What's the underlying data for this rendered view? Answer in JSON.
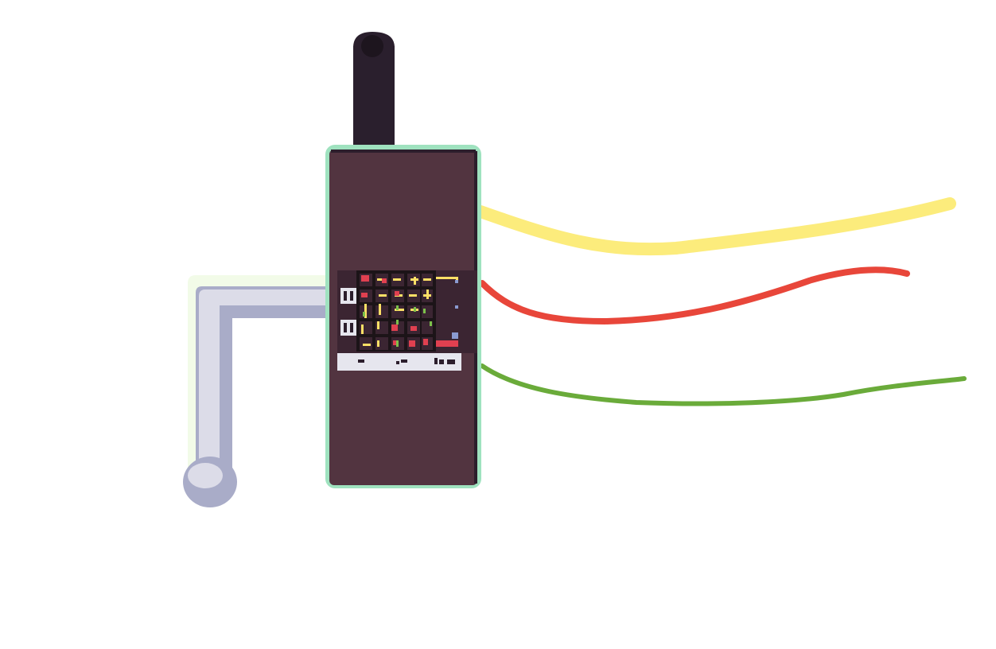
{
  "scene": {
    "background": "#ffffff",
    "device": {
      "body_color": "#523440",
      "outline_color": "#9fe2bf",
      "edge_shadow": "#2c1e2c",
      "antenna_color": "#2a1f2d",
      "antenna_cap_color": "#1d151e"
    },
    "handle": {
      "light_color": "#dcdce8",
      "shadow_color": "#a9acc8",
      "glow_color": "#f2fbe8"
    },
    "board": {
      "panel_color": "#3b2532",
      "grid_color": "#1c1418",
      "trace_yellow": "#ffe066",
      "node_red": "#e04050",
      "node_green": "#7cc04a",
      "label_bar_color": "#e6e6ee",
      "label_text_color": "#2c1e2c",
      "sockets": [
        "socket-1",
        "socket-2"
      ]
    },
    "wires": [
      {
        "name": "yellow-wire",
        "color": "#fcec7c"
      },
      {
        "name": "red-wire",
        "color": "#e8463a"
      },
      {
        "name": "green-wire",
        "color": "#6aab3a"
      }
    ]
  }
}
